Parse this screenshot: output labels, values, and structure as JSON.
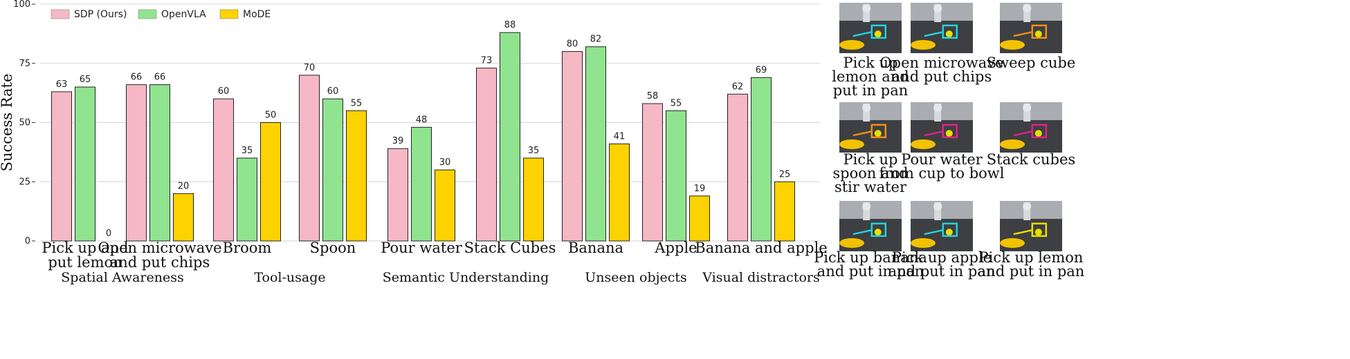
{
  "chart_data": {
    "type": "bar",
    "title": "",
    "ylabel": "Success Rate",
    "ylim": [
      0,
      100
    ],
    "yticks": [
      0,
      25,
      50,
      75,
      100
    ],
    "grid": "horizontal",
    "legend_position": "top-left",
    "series": [
      {
        "name": "SDP (Ours)",
        "color": "#f7b8c5",
        "values": [
          63,
          66,
          60,
          70,
          39,
          73,
          80,
          58,
          62
        ]
      },
      {
        "name": "OpenVLA",
        "color": "#90e48f",
        "values": [
          65,
          66,
          35,
          60,
          48,
          88,
          82,
          55,
          69
        ]
      },
      {
        "name": "MoDE",
        "color": "#fcd200",
        "values": [
          0,
          20,
          50,
          55,
          30,
          35,
          41,
          19,
          25
        ]
      }
    ],
    "categories": [
      {
        "label_lines": [
          "Pick up and",
          "put lemon"
        ]
      },
      {
        "label_lines": [
          "Open microwave",
          "and put chips"
        ]
      },
      {
        "label_lines": [
          "Broom"
        ]
      },
      {
        "label_lines": [
          "Spoon"
        ]
      },
      {
        "label_lines": [
          "Pour water"
        ]
      },
      {
        "label_lines": [
          "Stack Cubes"
        ]
      },
      {
        "label_lines": [
          "Banana"
        ]
      },
      {
        "label_lines": [
          "Apple"
        ]
      },
      {
        "label_lines": [
          "Banana and apple"
        ]
      }
    ],
    "groups": [
      {
        "label": "Spatial Awareness",
        "categories": [
          0,
          1
        ]
      },
      {
        "label": "Tool-usage",
        "categories": [
          2,
          3
        ]
      },
      {
        "label": "Semantic Understanding",
        "categories": [
          4,
          5
        ]
      },
      {
        "label": "Unseen objects",
        "categories": [
          6,
          7
        ]
      },
      {
        "label": "Visual distractors",
        "categories": [
          8
        ]
      }
    ]
  },
  "task_panels": [
    {
      "caption_lines": [
        "Pick up",
        "lemon and",
        "put in pan"
      ],
      "icon": "robot-scene-lemon-icon",
      "highlight": "#22d3e0"
    },
    {
      "caption_lines": [
        "Open microwave",
        "and put chips"
      ],
      "icon": "robot-scene-microwave-icon",
      "highlight": "#22d3e0"
    },
    {
      "caption_lines": [
        "Sweep cube"
      ],
      "icon": "robot-scene-sweep-icon",
      "highlight": "#f28c1c"
    },
    {
      "caption_lines": [
        "Pick up",
        "spoon and",
        "stir water"
      ],
      "icon": "robot-scene-spoon-icon",
      "highlight": "#f28c1c"
    },
    {
      "caption_lines": [
        "Pour water",
        "from cup to bowl"
      ],
      "icon": "robot-scene-pour-icon",
      "highlight": "#e0218a"
    },
    {
      "caption_lines": [
        "Stack cubes"
      ],
      "icon": "robot-scene-stack-icon",
      "highlight": "#e0218a"
    },
    {
      "caption_lines": [
        "Pick up banana",
        "and put in pan"
      ],
      "icon": "robot-scene-banana-icon",
      "highlight": "#22d3e0"
    },
    {
      "caption_lines": [
        "Pick up apple",
        "and put in pan"
      ],
      "icon": "robot-scene-apple-icon",
      "highlight": "#22d3e0"
    },
    {
      "caption_lines": [
        "Pick up lemon",
        "and put in pan"
      ],
      "icon": "robot-scene-lemon-pan-icon",
      "highlight": "#e8e000"
    }
  ]
}
